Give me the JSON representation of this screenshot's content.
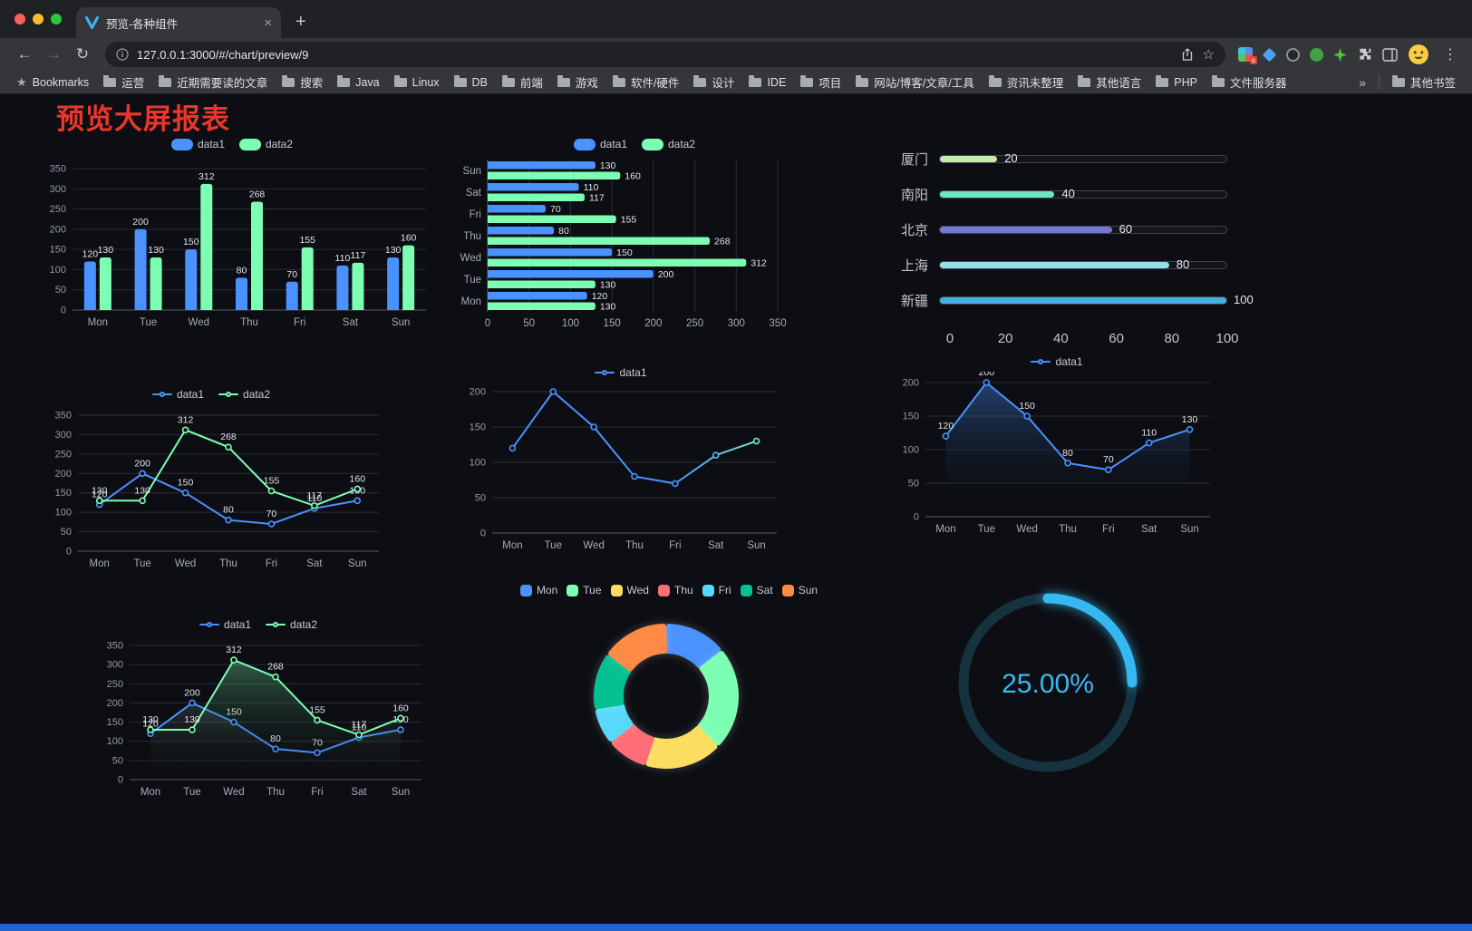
{
  "browser": {
    "tab": {
      "title": "预览-各种组件"
    },
    "url": "127.0.0.1:3000/#/chart/preview/9",
    "icons": {
      "back": "←",
      "forward": "→",
      "reload": "↻",
      "new_tab": "+",
      "close_tab": "×",
      "menu": "⋮",
      "star_outline": "☆",
      "bookmarks_star": "★",
      "badge": "o"
    },
    "bookmarks_bar": {
      "label": "Bookmarks",
      "folders": [
        "运营",
        "近期需要读的文章",
        "搜索",
        "Java",
        "Linux",
        "DB",
        "前端",
        "游戏",
        "软件/硬件",
        "设计",
        "IDE",
        "项目",
        "网站/博客/文章/工具",
        "资讯未整理",
        "其他语言",
        "PHP",
        "文件服务器"
      ],
      "overflow": "»",
      "other": "其他书签"
    }
  },
  "page": {
    "title": "预览大屏报表",
    "title_color": "#e8372c",
    "background": "#0d0e13"
  },
  "palette": {
    "blue": "#4992ff",
    "green": "#7cffb2",
    "yellow": "#fddd60",
    "red": "#ff6e76",
    "sky": "#58d9f9",
    "teal": "#05c091",
    "orange": "#ff8a45"
  },
  "chart_data": [
    {
      "id": "grouped-bar",
      "type": "bar",
      "orientation": "vertical",
      "categories": [
        "Mon",
        "Tue",
        "Wed",
        "Thu",
        "Fri",
        "Sat",
        "Sun"
      ],
      "series": [
        {
          "name": "data1",
          "color": "#4992ff",
          "values": [
            120,
            200,
            150,
            80,
            70,
            110,
            130
          ]
        },
        {
          "name": "data2",
          "color": "#7cffb2",
          "values": [
            130,
            130,
            312,
            268,
            155,
            117,
            160
          ]
        }
      ],
      "ylim": [
        0,
        350
      ],
      "ytick_step": 50,
      "show_labels": true,
      "legend_style": "pill",
      "legend_position": "top",
      "grid": true
    },
    {
      "id": "horizontal-bar",
      "type": "bar",
      "orientation": "horizontal",
      "categories": [
        "Mon",
        "Tue",
        "Wed",
        "Thu",
        "Fri",
        "Sat",
        "Sun"
      ],
      "series": [
        {
          "name": "data1",
          "color": "#4992ff",
          "values": [
            120,
            200,
            150,
            80,
            70,
            110,
            130
          ]
        },
        {
          "name": "data2",
          "color": "#7cffb2",
          "values": [
            130,
            130,
            312,
            268,
            155,
            117,
            160
          ]
        }
      ],
      "xlim": [
        0,
        350
      ],
      "xtick_step": 50,
      "show_labels": true,
      "legend_style": "pill",
      "legend_position": "top",
      "grid": true
    },
    {
      "id": "progress-bars",
      "type": "bar",
      "subtype": "progress",
      "categories": [
        "厦门",
        "南阳",
        "北京",
        "上海",
        "新疆"
      ],
      "values": [
        20,
        40,
        60,
        80,
        100
      ],
      "colors": [
        "#c4ebad",
        "#6be6c1",
        "#7478d4",
        "#96dee8",
        "#3fb1e3"
      ],
      "xticks": [
        0,
        20,
        40,
        60,
        80,
        100
      ],
      "xlim": [
        0,
        100
      ]
    },
    {
      "id": "line-two-series",
      "type": "line",
      "categories": [
        "Mon",
        "Tue",
        "Wed",
        "Thu",
        "Fri",
        "Sat",
        "Sun"
      ],
      "series": [
        {
          "name": "data1",
          "color": "#4992ff",
          "values": [
            120,
            200,
            150,
            80,
            70,
            110,
            130
          ]
        },
        {
          "name": "data2",
          "color": "#7cffb2",
          "values": [
            130,
            130,
            312,
            268,
            155,
            117,
            160
          ]
        }
      ],
      "ylim": [
        0,
        350
      ],
      "ytick_step": 50,
      "show_labels": true,
      "legend_style": "line",
      "legend_position": "top",
      "grid": true
    },
    {
      "id": "line-gradient",
      "type": "line",
      "categories": [
        "Mon",
        "Tue",
        "Wed",
        "Thu",
        "Fri",
        "Sat",
        "Sun"
      ],
      "series": [
        {
          "name": "data1",
          "color": "#4992ff",
          "gradient_to": "#7cffb2",
          "values": [
            120,
            200,
            150,
            80,
            70,
            110,
            130
          ]
        }
      ],
      "ylim": [
        0,
        200
      ],
      "ytick_step": 50,
      "show_labels": false,
      "legend_style": "line",
      "legend_position": "top",
      "grid": true
    },
    {
      "id": "line-area",
      "type": "line",
      "categories": [
        "Mon",
        "Tue",
        "Wed",
        "Thu",
        "Fri",
        "Sat",
        "Sun"
      ],
      "series": [
        {
          "name": "data1",
          "color": "#4992ff",
          "area": true,
          "area_color": "rgba(73,146,255,0.40)",
          "values": [
            120,
            200,
            150,
            80,
            70,
            110,
            130
          ]
        }
      ],
      "ylim": [
        0,
        200
      ],
      "ytick_step": 50,
      "show_labels": true,
      "legend_style": "line",
      "legend_position": "top",
      "grid": true
    },
    {
      "id": "line-two-series-area",
      "type": "line",
      "categories": [
        "Mon",
        "Tue",
        "Wed",
        "Thu",
        "Fri",
        "Sat",
        "Sun"
      ],
      "series": [
        {
          "name": "data1",
          "color": "#4992ff",
          "area": true,
          "area_color": "rgba(150,155,170,0.20)",
          "values": [
            120,
            200,
            150,
            80,
            70,
            110,
            130
          ]
        },
        {
          "name": "data2",
          "color": "#7cffb2",
          "area": true,
          "area_color": "rgba(124,255,178,0.32)",
          "values": [
            130,
            130,
            312,
            268,
            155,
            117,
            160
          ]
        }
      ],
      "ylim": [
        0,
        350
      ],
      "ytick_step": 50,
      "show_labels": true,
      "legend_style": "line",
      "legend_position": "top",
      "grid": true
    },
    {
      "id": "donut",
      "type": "pie",
      "inner_radius_ratio": 0.58,
      "categories": [
        "Mon",
        "Tue",
        "Wed",
        "Thu",
        "Fri",
        "Sat",
        "Sun"
      ],
      "values": [
        120,
        200,
        150,
        80,
        70,
        110,
        130
      ],
      "colors": [
        "#4992ff",
        "#7cffb2",
        "#fddd60",
        "#ff6e76",
        "#58d9f9",
        "#05c091",
        "#ff8a45"
      ],
      "legend_style": "square",
      "legend_position": "top"
    },
    {
      "id": "gauge",
      "type": "gauge",
      "value": 25,
      "display": "25.00%",
      "color": "#35b8f2",
      "track_color": "#15333f"
    }
  ]
}
